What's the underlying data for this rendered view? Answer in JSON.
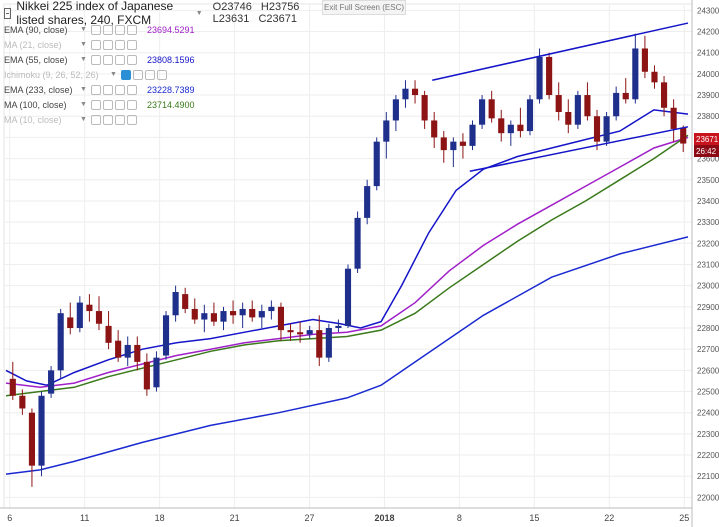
{
  "header": {
    "title": "Nikkei 225 index of Japanese listed shares, 240, FXCM",
    "open": "O23746",
    "high": "H23756",
    "low": "L23631",
    "close": "C23671",
    "exit_fullscreen": "Exit Full Screen (ESC)"
  },
  "indicators": [
    {
      "label": "EMA (90, close)",
      "value": "23694.5291",
      "color": "#a020c8",
      "visible": true
    },
    {
      "label": "MA (21, close)",
      "value": "",
      "color": "#bbbbbb",
      "visible": false
    },
    {
      "label": "EMA (55, close)",
      "value": "23808.1596",
      "color": "#1414c8",
      "visible": true
    },
    {
      "label": "Ichimoku (9, 26, 52, 26)",
      "value": "",
      "color": "#bbbbbb",
      "visible": false
    },
    {
      "label": "EMA (233, close)",
      "value": "23228.7389",
      "color": "#1a2ad0",
      "visible": true
    },
    {
      "label": "MA (100, close)",
      "value": "23714.4900",
      "color": "#3a7a1a",
      "visible": true
    },
    {
      "label": "MA (10, close)",
      "value": "",
      "color": "#bbbbbb",
      "visible": false
    }
  ],
  "price_labels": {
    "last": "23671",
    "countdown": "26:42"
  },
  "chart_data": {
    "type": "line",
    "x_ticks": [
      "6",
      "11",
      "18",
      "21",
      "27",
      "2018",
      "8",
      "15",
      "22",
      "25"
    ],
    "y_ticks": [
      22000,
      22100,
      22200,
      22300,
      22400,
      22500,
      22600,
      22700,
      22800,
      22900,
      23000,
      23100,
      23200,
      23300,
      23400,
      23500,
      23600,
      23700,
      23800,
      23900,
      24000,
      24100,
      24200,
      24300
    ],
    "ylim": [
      21950,
      24330
    ],
    "candles": [
      [
        22560,
        22640,
        22460,
        22480
      ],
      [
        22480,
        22510,
        22390,
        22420
      ],
      [
        22400,
        22420,
        22050,
        22150
      ],
      [
        22150,
        22500,
        22100,
        22480
      ],
      [
        22490,
        22620,
        22470,
        22600
      ],
      [
        22600,
        22890,
        22560,
        22870
      ],
      [
        22850,
        22920,
        22770,
        22800
      ],
      [
        22800,
        22950,
        22780,
        22920
      ],
      [
        22910,
        22960,
        22830,
        22880
      ],
      [
        22880,
        22950,
        22790,
        22820
      ],
      [
        22810,
        22880,
        22700,
        22730
      ],
      [
        22740,
        22790,
        22640,
        22660
      ],
      [
        22660,
        22760,
        22620,
        22720
      ],
      [
        22720,
        22760,
        22600,
        22640
      ],
      [
        22640,
        22680,
        22480,
        22510
      ],
      [
        22520,
        22690,
        22500,
        22660
      ],
      [
        22670,
        22880,
        22650,
        22860
      ],
      [
        22860,
        23000,
        22830,
        22970
      ],
      [
        22960,
        22990,
        22870,
        22890
      ],
      [
        22890,
        22940,
        22820,
        22840
      ],
      [
        22840,
        22910,
        22780,
        22870
      ],
      [
        22870,
        22920,
        22810,
        22830
      ],
      [
        22830,
        22900,
        22790,
        22880
      ],
      [
        22880,
        22930,
        22820,
        22860
      ],
      [
        22860,
        22920,
        22800,
        22890
      ],
      [
        22890,
        22930,
        22830,
        22850
      ],
      [
        22850,
        22910,
        22800,
        22880
      ],
      [
        22880,
        22930,
        22840,
        22900
      ],
      [
        22900,
        22920,
        22740,
        22790
      ],
      [
        22790,
        22820,
        22740,
        22780
      ],
      [
        22780,
        22830,
        22730,
        22770
      ],
      [
        22770,
        22810,
        22750,
        22790
      ],
      [
        22790,
        22860,
        22620,
        22660
      ],
      [
        22660,
        22820,
        22640,
        22800
      ],
      [
        22800,
        22840,
        22780,
        22810
      ],
      [
        22810,
        23100,
        22800,
        23080
      ],
      [
        23080,
        23350,
        23060,
        23320
      ],
      [
        23320,
        23500,
        23290,
        23470
      ],
      [
        23470,
        23700,
        23450,
        23680
      ],
      [
        23680,
        23820,
        23600,
        23780
      ],
      [
        23780,
        23900,
        23730,
        23880
      ],
      [
        23880,
        23970,
        23840,
        23930
      ],
      [
        23930,
        23970,
        23860,
        23900
      ],
      [
        23900,
        23920,
        23740,
        23780
      ],
      [
        23780,
        23820,
        23650,
        23700
      ],
      [
        23700,
        23730,
        23580,
        23640
      ],
      [
        23640,
        23700,
        23560,
        23680
      ],
      [
        23680,
        23720,
        23600,
        23660
      ],
      [
        23660,
        23780,
        23640,
        23760
      ],
      [
        23760,
        23900,
        23740,
        23880
      ],
      [
        23880,
        23920,
        23770,
        23790
      ],
      [
        23790,
        23830,
        23680,
        23720
      ],
      [
        23720,
        23780,
        23660,
        23760
      ],
      [
        23760,
        23840,
        23700,
        23730
      ],
      [
        23730,
        23900,
        23710,
        23880
      ],
      [
        23880,
        24120,
        23860,
        24080
      ],
      [
        24080,
        24100,
        23880,
        23900
      ],
      [
        23900,
        23960,
        23780,
        23820
      ],
      [
        23820,
        23880,
        23720,
        23760
      ],
      [
        23760,
        23920,
        23740,
        23900
      ],
      [
        23900,
        23960,
        23780,
        23800
      ],
      [
        23800,
        23830,
        23640,
        23680
      ],
      [
        23680,
        23820,
        23660,
        23800
      ],
      [
        23800,
        23940,
        23780,
        23910
      ],
      [
        23910,
        23980,
        23860,
        23880
      ],
      [
        23880,
        24190,
        23860,
        24120
      ],
      [
        24120,
        24180,
        23980,
        24010
      ],
      [
        24010,
        24040,
        23930,
        23960
      ],
      [
        23960,
        23990,
        23800,
        23840
      ],
      [
        23840,
        23880,
        23680,
        23740
      ],
      [
        23746,
        23756,
        23631,
        23671
      ]
    ],
    "series": [
      {
        "name": "EMA (233, close)",
        "color": "#1a2ad0",
        "values": [
          [
            0,
            22110
          ],
          [
            0.05,
            22130
          ],
          [
            0.1,
            22170
          ],
          [
            0.2,
            22260
          ],
          [
            0.3,
            22340
          ],
          [
            0.4,
            22400
          ],
          [
            0.5,
            22470
          ],
          [
            0.55,
            22530
          ],
          [
            0.6,
            22640
          ],
          [
            0.7,
            22860
          ],
          [
            0.8,
            23040
          ],
          [
            0.9,
            23150
          ],
          [
            1,
            23230
          ]
        ]
      },
      {
        "name": "EMA (55, close)",
        "color": "#1414c8",
        "values": [
          [
            0,
            22600
          ],
          [
            0.03,
            22550
          ],
          [
            0.06,
            22530
          ],
          [
            0.1,
            22590
          ],
          [
            0.15,
            22650
          ],
          [
            0.2,
            22700
          ],
          [
            0.25,
            22730
          ],
          [
            0.3,
            22750
          ],
          [
            0.35,
            22780
          ],
          [
            0.4,
            22810
          ],
          [
            0.45,
            22840
          ],
          [
            0.49,
            22820
          ],
          [
            0.52,
            22800
          ],
          [
            0.55,
            22830
          ],
          [
            0.58,
            23000
          ],
          [
            0.62,
            23250
          ],
          [
            0.66,
            23450
          ],
          [
            0.7,
            23550
          ],
          [
            0.75,
            23610
          ],
          [
            0.8,
            23650
          ],
          [
            0.85,
            23690
          ],
          [
            0.9,
            23730
          ],
          [
            0.95,
            23830
          ],
          [
            1,
            23810
          ]
        ]
      },
      {
        "name": "EMA (90, close)",
        "color": "#a020c8",
        "values": [
          [
            0,
            22540
          ],
          [
            0.05,
            22520
          ],
          [
            0.1,
            22540
          ],
          [
            0.15,
            22590
          ],
          [
            0.2,
            22630
          ],
          [
            0.25,
            22670
          ],
          [
            0.3,
            22700
          ],
          [
            0.35,
            22730
          ],
          [
            0.4,
            22750
          ],
          [
            0.45,
            22770
          ],
          [
            0.5,
            22780
          ],
          [
            0.55,
            22810
          ],
          [
            0.6,
            22920
          ],
          [
            0.65,
            23070
          ],
          [
            0.7,
            23190
          ],
          [
            0.75,
            23290
          ],
          [
            0.8,
            23380
          ],
          [
            0.85,
            23470
          ],
          [
            0.9,
            23560
          ],
          [
            0.95,
            23650
          ],
          [
            1,
            23700
          ]
        ]
      },
      {
        "name": "MA (100, close)",
        "color": "#3a7a1a",
        "values": [
          [
            0,
            22480
          ],
          [
            0.05,
            22500
          ],
          [
            0.1,
            22520
          ],
          [
            0.15,
            22570
          ],
          [
            0.2,
            22610
          ],
          [
            0.25,
            22650
          ],
          [
            0.3,
            22690
          ],
          [
            0.35,
            22720
          ],
          [
            0.4,
            22740
          ],
          [
            0.45,
            22750
          ],
          [
            0.5,
            22760
          ],
          [
            0.55,
            22790
          ],
          [
            0.6,
            22870
          ],
          [
            0.65,
            22990
          ],
          [
            0.7,
            23100
          ],
          [
            0.75,
            23210
          ],
          [
            0.8,
            23310
          ],
          [
            0.85,
            23400
          ],
          [
            0.9,
            23500
          ],
          [
            0.95,
            23600
          ],
          [
            1,
            23710
          ]
        ]
      }
    ],
    "trendlines": [
      {
        "from": [
          0.625,
          23970
        ],
        "to": [
          1,
          24240
        ]
      },
      {
        "from": [
          0.68,
          23540
        ],
        "to": [
          1,
          23750
        ]
      }
    ]
  }
}
